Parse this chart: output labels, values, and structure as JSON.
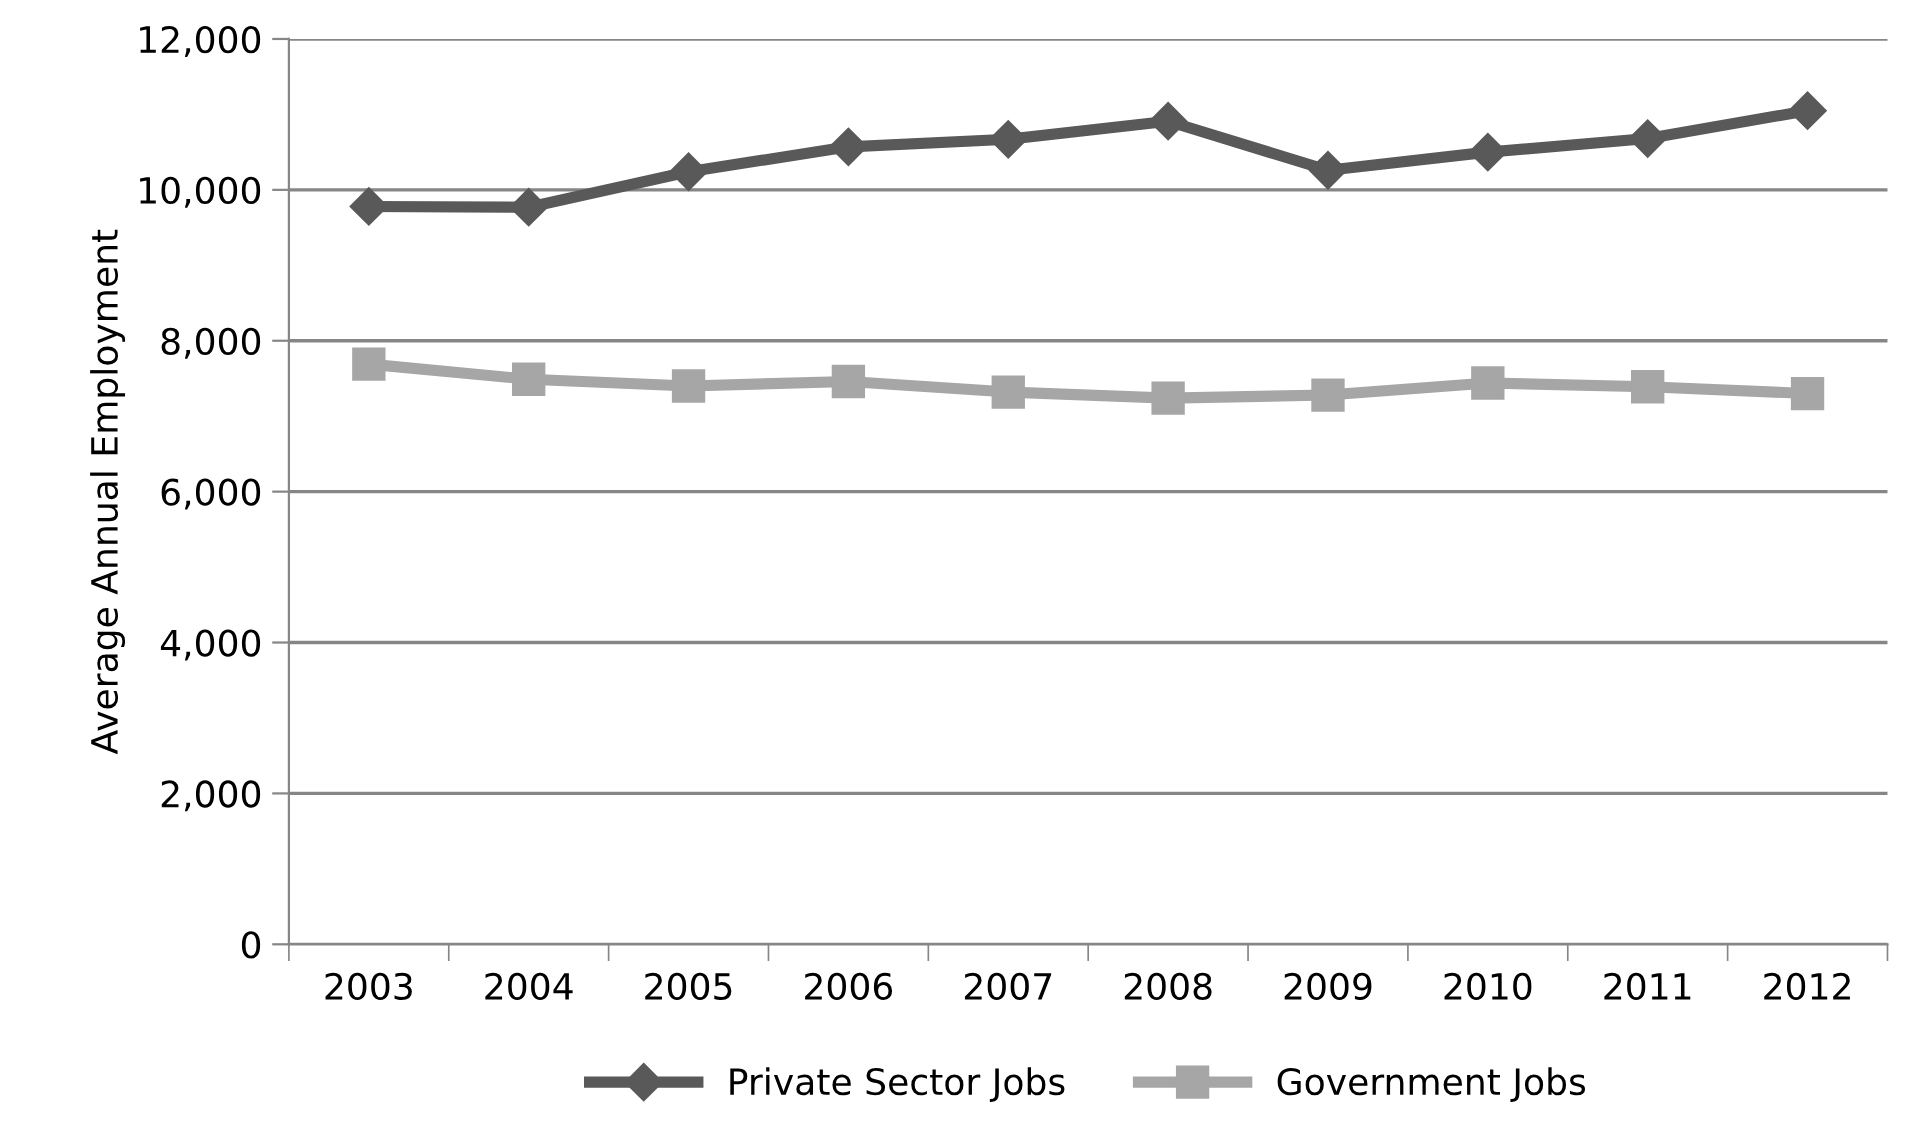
{
  "chart_data": {
    "type": "line",
    "ylabel": "Average Annual Employment",
    "categories": [
      "2003",
      "2004",
      "2005",
      "2006",
      "2007",
      "2008",
      "2009",
      "2010",
      "2011",
      "2012"
    ],
    "series": [
      {
        "name": "Private Sector Jobs",
        "color": "#595959",
        "marker": "diamond",
        "values": [
          9780,
          9770,
          10240,
          10570,
          10670,
          10910,
          10260,
          10500,
          10680,
          11050
        ]
      },
      {
        "name": "Government Jobs",
        "color": "#a6a6a6",
        "marker": "square",
        "values": [
          7690,
          7490,
          7400,
          7460,
          7320,
          7240,
          7280,
          7440,
          7390,
          7300
        ]
      }
    ],
    "ylim": [
      0,
      12000
    ],
    "yticks": [
      {
        "value": 0,
        "label": "0"
      },
      {
        "value": 2000,
        "label": "2,000"
      },
      {
        "value": 4000,
        "label": "4,000"
      },
      {
        "value": 6000,
        "label": "6,000"
      },
      {
        "value": 8000,
        "label": "8,000"
      },
      {
        "value": 10000,
        "label": "10,000"
      },
      {
        "value": 12000,
        "label": "12,000"
      }
    ],
    "grid": "y",
    "legend": "bottom",
    "line_style": "solid"
  }
}
